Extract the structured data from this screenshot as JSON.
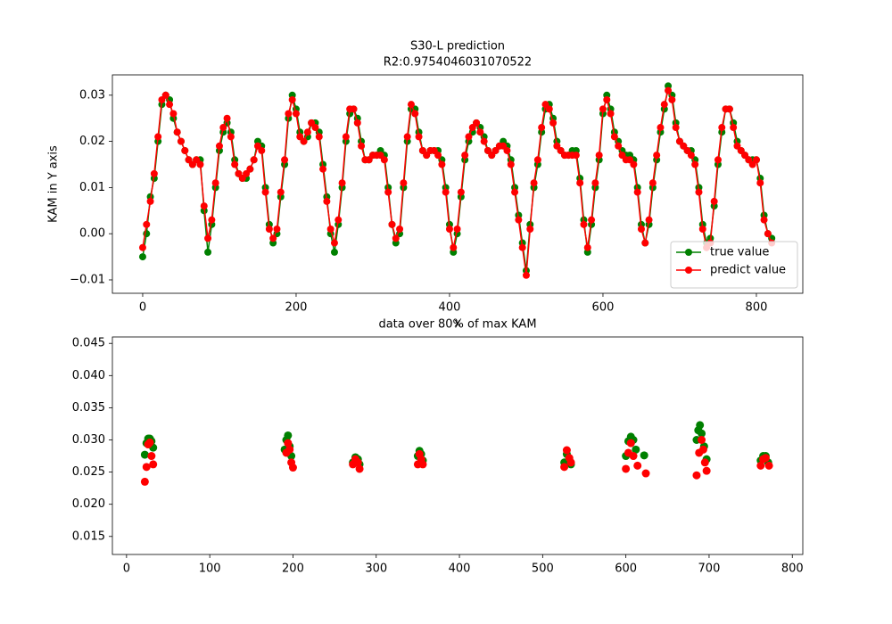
{
  "chart_data": [
    {
      "type": "line",
      "title": "S30-L prediction",
      "subtitle": "R2:0.9754046031070522",
      "xlabel": "x",
      "ylabel": "KAM in Y axis",
      "legend": "lower right",
      "marker": "circle",
      "x": [
        0,
        5,
        10,
        15,
        20,
        25,
        30,
        35,
        40,
        45,
        50,
        55,
        60,
        65,
        70,
        75,
        80,
        85,
        90,
        95,
        100,
        105,
        110,
        115,
        120,
        125,
        130,
        135,
        140,
        145,
        150,
        155,
        160,
        165,
        170,
        175,
        180,
        185,
        190,
        195,
        200,
        205,
        210,
        215,
        220,
        225,
        230,
        235,
        240,
        245,
        250,
        255,
        260,
        265,
        270,
        275,
        280,
        285,
        290,
        295,
        300,
        305,
        310,
        315,
        320,
        325,
        330,
        335,
        340,
        345,
        350,
        355,
        360,
        365,
        370,
        375,
        380,
        385,
        390,
        395,
        400,
        405,
        410,
        415,
        420,
        425,
        430,
        435,
        440,
        445,
        450,
        455,
        460,
        465,
        470,
        475,
        480,
        485,
        490,
        495,
        500,
        505,
        510,
        515,
        520,
        525,
        530,
        535,
        540,
        545,
        550,
        555,
        560,
        565,
        570,
        575,
        580,
        585,
        590,
        595,
        600,
        605,
        610,
        615,
        620,
        625,
        630,
        635,
        640,
        645,
        650,
        655,
        660,
        665,
        670,
        675,
        680,
        685,
        690,
        695,
        700,
        705,
        710,
        715,
        720,
        725,
        730,
        735,
        740,
        745,
        750,
        755,
        760,
        765,
        770,
        775,
        780,
        785,
        790,
        795,
        800,
        805,
        810,
        815,
        820
      ],
      "series": [
        {
          "name": "true value",
          "color": "#008000",
          "values": [
            -0.005,
            0.0,
            0.008,
            0.012,
            0.02,
            0.028,
            0.03,
            0.029,
            0.025,
            0.022,
            0.02,
            0.018,
            0.016,
            0.015,
            0.016,
            0.016,
            0.005,
            -0.004,
            0.002,
            0.01,
            0.018,
            0.022,
            0.024,
            0.022,
            0.016,
            0.013,
            0.012,
            0.012,
            0.014,
            0.016,
            0.02,
            0.019,
            0.01,
            0.002,
            -0.002,
            0.0,
            0.008,
            0.015,
            0.025,
            0.03,
            0.027,
            0.022,
            0.02,
            0.021,
            0.024,
            0.024,
            0.022,
            0.015,
            0.008,
            0.0,
            -0.004,
            0.002,
            0.01,
            0.02,
            0.026,
            0.027,
            0.025,
            0.02,
            0.016,
            0.016,
            0.017,
            0.017,
            0.018,
            0.017,
            0.01,
            0.002,
            -0.002,
            0.0,
            0.01,
            0.02,
            0.027,
            0.027,
            0.022,
            0.018,
            0.017,
            0.018,
            0.018,
            0.018,
            0.016,
            0.01,
            0.002,
            -0.004,
            0.0,
            0.008,
            0.016,
            0.02,
            0.022,
            0.024,
            0.023,
            0.021,
            0.018,
            0.017,
            0.018,
            0.019,
            0.02,
            0.019,
            0.016,
            0.01,
            0.004,
            -0.002,
            -0.008,
            0.002,
            0.01,
            0.015,
            0.022,
            0.027,
            0.028,
            0.025,
            0.02,
            0.018,
            0.017,
            0.017,
            0.018,
            0.018,
            0.012,
            0.003,
            -0.004,
            0.002,
            0.01,
            0.016,
            0.026,
            0.03,
            0.027,
            0.022,
            0.02,
            0.018,
            0.017,
            0.017,
            0.016,
            0.01,
            0.002,
            -0.002,
            0.002,
            0.01,
            0.016,
            0.022,
            0.027,
            0.032,
            0.03,
            0.024,
            0.02,
            0.019,
            0.018,
            0.018,
            0.016,
            0.01,
            0.002,
            -0.002,
            -0.001,
            0.006,
            0.015,
            0.022,
            0.027,
            0.027,
            0.024,
            0.02,
            0.018,
            0.017,
            0.016,
            0.016,
            0.016,
            0.012,
            0.004,
            0.0,
            -0.001
          ]
        },
        {
          "name": "predict value",
          "color": "#ff0000",
          "values": [
            -0.003,
            0.002,
            0.007,
            0.013,
            0.021,
            0.029,
            0.03,
            0.028,
            0.026,
            0.022,
            0.02,
            0.018,
            0.016,
            0.015,
            0.016,
            0.015,
            0.006,
            -0.001,
            0.003,
            0.011,
            0.019,
            0.023,
            0.025,
            0.021,
            0.015,
            0.013,
            0.012,
            0.013,
            0.014,
            0.016,
            0.019,
            0.018,
            0.009,
            0.001,
            -0.001,
            0.001,
            0.009,
            0.016,
            0.026,
            0.029,
            0.026,
            0.021,
            0.02,
            0.022,
            0.024,
            0.023,
            0.021,
            0.014,
            0.007,
            0.001,
            -0.002,
            0.003,
            0.011,
            0.021,
            0.027,
            0.027,
            0.024,
            0.019,
            0.016,
            0.016,
            0.017,
            0.017,
            0.017,
            0.016,
            0.009,
            0.002,
            -0.001,
            0.001,
            0.011,
            0.021,
            0.028,
            0.026,
            0.021,
            0.018,
            0.017,
            0.018,
            0.018,
            0.017,
            0.015,
            0.009,
            0.001,
            -0.003,
            0.001,
            0.009,
            0.017,
            0.021,
            0.023,
            0.024,
            0.022,
            0.02,
            0.018,
            0.017,
            0.018,
            0.019,
            0.019,
            0.018,
            0.015,
            0.009,
            0.003,
            -0.003,
            -0.009,
            0.001,
            0.011,
            0.016,
            0.023,
            0.028,
            0.027,
            0.024,
            0.019,
            0.018,
            0.017,
            0.017,
            0.017,
            0.017,
            0.011,
            0.002,
            -0.003,
            0.003,
            0.011,
            0.017,
            0.027,
            0.029,
            0.026,
            0.021,
            0.019,
            0.017,
            0.016,
            0.016,
            0.015,
            0.009,
            0.001,
            -0.002,
            0.003,
            0.011,
            0.017,
            0.023,
            0.028,
            0.031,
            0.029,
            0.023,
            0.02,
            0.019,
            0.018,
            0.017,
            0.015,
            0.009,
            0.001,
            -0.003,
            -0.002,
            0.007,
            0.016,
            0.023,
            0.027,
            0.027,
            0.023,
            0.019,
            0.018,
            0.017,
            0.016,
            0.015,
            0.016,
            0.011,
            0.003,
            0.0,
            -0.002
          ]
        }
      ],
      "xlim": [
        -39.5,
        860.5
      ],
      "ylim": [
        -0.0129,
        0.0344
      ],
      "xticks": [
        0,
        200,
        400,
        600,
        800
      ],
      "yticks": [
        {
          "value": -0.01,
          "label": "−0.01"
        },
        {
          "value": 0,
          "label": "0.00"
        },
        {
          "value": 0.01,
          "label": "0.01"
        },
        {
          "value": 0.02,
          "label": "0.02"
        },
        {
          "value": 0.03,
          "label": "0.03"
        }
      ]
    },
    {
      "type": "scatter",
      "title": "data over 80% of max KAM",
      "series": [
        {
          "color": "#008000",
          "x": [
            22,
            24,
            26,
            28,
            30,
            32,
            190,
            192,
            194,
            196,
            198,
            272,
            275,
            278,
            280,
            350,
            352,
            354,
            356,
            526,
            529,
            532,
            534,
            600,
            603,
            606,
            609,
            612,
            622,
            685,
            687,
            689,
            691,
            694,
            697,
            762,
            765,
            768,
            771
          ],
          "values": [
            0.0277,
            0.0295,
            0.0302,
            0.0302,
            0.0298,
            0.0288,
            0.0285,
            0.03,
            0.0307,
            0.029,
            0.0275,
            0.0265,
            0.0273,
            0.027,
            0.0262,
            0.0275,
            0.0283,
            0.0278,
            0.0268,
            0.0265,
            0.0278,
            0.027,
            0.0262,
            0.0275,
            0.0298,
            0.0305,
            0.03,
            0.0285,
            0.0276,
            0.03,
            0.0315,
            0.0323,
            0.031,
            0.029,
            0.027,
            0.0268,
            0.0275,
            0.0275,
            0.0265
          ]
        },
        {
          "color": "#ff0000",
          "x": [
            22,
            24,
            26,
            28,
            30,
            32,
            192,
            194,
            196,
            198,
            200,
            272,
            275,
            278,
            280,
            350,
            352,
            354,
            356,
            526,
            529,
            532,
            534,
            600,
            603,
            606,
            609,
            614,
            624,
            685,
            688,
            691,
            693,
            695,
            697,
            762,
            765,
            768,
            772
          ],
          "values": [
            0.0235,
            0.0258,
            0.0293,
            0.0296,
            0.0275,
            0.0262,
            0.028,
            0.0295,
            0.0285,
            0.0265,
            0.0257,
            0.0262,
            0.027,
            0.0265,
            0.0255,
            0.0262,
            0.0278,
            0.027,
            0.0262,
            0.0258,
            0.0284,
            0.0272,
            0.0265,
            0.0255,
            0.028,
            0.0295,
            0.0275,
            0.026,
            0.0248,
            0.0245,
            0.028,
            0.03,
            0.0285,
            0.0265,
            0.0252,
            0.026,
            0.027,
            0.0272,
            0.026
          ]
        }
      ],
      "xlim": [
        -17,
        812.6
      ],
      "ylim": [
        0.0122,
        0.046
      ],
      "xticks": [
        0,
        100,
        200,
        300,
        400,
        500,
        600,
        700,
        800
      ],
      "yticks": [
        0.015,
        {
          "value": 0.02,
          "label": "0.020"
        },
        0.025,
        {
          "value": 0.03,
          "label": "0.030"
        },
        0.035,
        {
          "value": 0.04,
          "label": "0.040"
        },
        0.045
      ]
    }
  ]
}
